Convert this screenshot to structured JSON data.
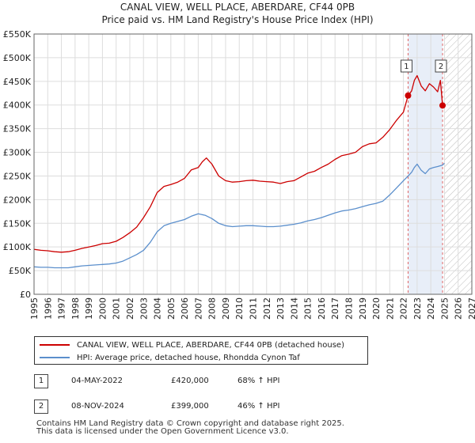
{
  "title_line1": "CANAL VIEW, WELL PLACE, ABERDARE, CF44 0PB",
  "title_line2": "Price paid vs. HM Land Registry's House Price Index (HPI)",
  "legend": {
    "property_label": "CANAL VIEW, WELL PLACE, ABERDARE, CF44 0PB (detached house)",
    "hpi_label": "HPI: Average price, detached house, Rhondda Cynon Taf"
  },
  "sales": [
    {
      "num": "1",
      "date": "04-MAY-2022",
      "price": "£420,000",
      "hpi_change": "68% ↑ HPI"
    },
    {
      "num": "2",
      "date": "08-NOV-2024",
      "price": "£399,000",
      "hpi_change": "46% ↑ HPI"
    }
  ],
  "footer": {
    "line1": "Contains HM Land Registry data © Crown copyright and database right 2025.",
    "line2": "This data is licensed under the Open Government Licence v3.0."
  },
  "colors": {
    "property": "#cc0000",
    "hpi": "#5b8fcc",
    "sale_band": "#e8eef8",
    "sale_line": "#e06666",
    "grid": "#dddddd"
  },
  "chart_data": {
    "type": "line",
    "title": "Price paid vs. HM Land Registry's House Price Index (HPI)",
    "xlabel": "",
    "ylabel": "",
    "xlim": [
      1995,
      2027
    ],
    "ylim": [
      0,
      550000
    ],
    "x_ticks": [
      1995,
      1996,
      1997,
      1998,
      1999,
      2000,
      2001,
      2002,
      2003,
      2004,
      2005,
      2006,
      2007,
      2008,
      2009,
      2010,
      2011,
      2012,
      2013,
      2014,
      2015,
      2016,
      2017,
      2018,
      2019,
      2020,
      2021,
      2022,
      2023,
      2024,
      2025,
      2026,
      2027
    ],
    "y_ticks": [
      {
        "value": 0,
        "label": "£0"
      },
      {
        "value": 50000,
        "label": "£50K"
      },
      {
        "value": 100000,
        "label": "£100K"
      },
      {
        "value": 150000,
        "label": "£150K"
      },
      {
        "value": 200000,
        "label": "£200K"
      },
      {
        "value": 250000,
        "label": "£250K"
      },
      {
        "value": 300000,
        "label": "£300K"
      },
      {
        "value": 350000,
        "label": "£350K"
      },
      {
        "value": 400000,
        "label": "£400K"
      },
      {
        "value": 450000,
        "label": "£450K"
      },
      {
        "value": 500000,
        "label": "£500K"
      },
      {
        "value": 550000,
        "label": "£550K"
      }
    ],
    "sale_band": [
      2022.34,
      2024.86
    ],
    "hatch_from": 2025.0,
    "series": [
      {
        "name": "CANAL VIEW, WELL PLACE, ABERDARE, CF44 0PB (detached house)",
        "key": "property",
        "x": [
          1995.0,
          1995.5,
          1996.0,
          1996.5,
          1997.0,
          1997.5,
          1998.0,
          1998.5,
          1999.0,
          1999.5,
          2000.0,
          2000.5,
          2001.0,
          2001.5,
          2002.0,
          2002.5,
          2003.0,
          2003.5,
          2004.0,
          2004.5,
          2005.0,
          2005.5,
          2006.0,
          2006.5,
          2007.0,
          2007.3,
          2007.6,
          2008.0,
          2008.5,
          2009.0,
          2009.5,
          2010.0,
          2010.5,
          2011.0,
          2011.5,
          2012.0,
          2012.5,
          2013.0,
          2013.5,
          2014.0,
          2014.5,
          2015.0,
          2015.5,
          2016.0,
          2016.5,
          2017.0,
          2017.5,
          2018.0,
          2018.5,
          2019.0,
          2019.5,
          2020.0,
          2020.5,
          2021.0,
          2021.5,
          2022.0,
          2022.34,
          2022.6,
          2022.8,
          2023.0,
          2023.3,
          2023.6,
          2023.9,
          2024.2,
          2024.5,
          2024.7,
          2024.86,
          2025.0
        ],
        "y": [
          95000,
          93000,
          92000,
          90000,
          89000,
          90000,
          93000,
          97000,
          100000,
          103000,
          107000,
          108000,
          112000,
          120000,
          130000,
          142000,
          162000,
          185000,
          215000,
          228000,
          232000,
          237000,
          245000,
          263000,
          268000,
          280000,
          288000,
          275000,
          250000,
          240000,
          237000,
          238000,
          240000,
          241000,
          239000,
          238000,
          237000,
          234000,
          238000,
          240000,
          248000,
          256000,
          260000,
          268000,
          275000,
          285000,
          293000,
          296000,
          300000,
          312000,
          318000,
          320000,
          332000,
          348000,
          368000,
          385000,
          420000,
          430000,
          452000,
          462000,
          440000,
          430000,
          445000,
          438000,
          428000,
          452000,
          399000,
          398000
        ]
      },
      {
        "name": "HPI: Average price, detached house, Rhondda Cynon Taf",
        "key": "hpi",
        "x": [
          1995.0,
          1995.5,
          1996.0,
          1996.5,
          1997.0,
          1997.5,
          1998.0,
          1998.5,
          1999.0,
          1999.5,
          2000.0,
          2000.5,
          2001.0,
          2001.5,
          2002.0,
          2002.5,
          2003.0,
          2003.5,
          2004.0,
          2004.5,
          2005.0,
          2005.5,
          2006.0,
          2006.5,
          2007.0,
          2007.5,
          2008.0,
          2008.5,
          2009.0,
          2009.5,
          2010.0,
          2010.5,
          2011.0,
          2011.5,
          2012.0,
          2012.5,
          2013.0,
          2013.5,
          2014.0,
          2014.5,
          2015.0,
          2015.5,
          2016.0,
          2016.5,
          2017.0,
          2017.5,
          2018.0,
          2018.5,
          2019.0,
          2019.5,
          2020.0,
          2020.5,
          2021.0,
          2021.5,
          2022.0,
          2022.34,
          2022.6,
          2022.8,
          2023.0,
          2023.3,
          2023.6,
          2023.9,
          2024.2,
          2024.5,
          2024.86,
          2025.0
        ],
        "y": [
          58000,
          57000,
          57000,
          56000,
          56000,
          56000,
          58000,
          60000,
          61000,
          62000,
          63000,
          64000,
          66000,
          70000,
          77000,
          84000,
          93000,
          110000,
          132000,
          145000,
          150000,
          154000,
          158000,
          165000,
          170000,
          167000,
          160000,
          150000,
          145000,
          143000,
          144000,
          145000,
          145000,
          144000,
          143000,
          143000,
          144000,
          146000,
          148000,
          151000,
          155000,
          158000,
          162000,
          167000,
          172000,
          176000,
          178000,
          181000,
          185000,
          189000,
          192000,
          197000,
          210000,
          225000,
          240000,
          250000,
          258000,
          268000,
          275000,
          262000,
          255000,
          265000,
          268000,
          270000,
          273000,
          277000
        ]
      }
    ],
    "annotations": [
      {
        "label": "1",
        "x": 2022.34,
        "y": 420000,
        "series": "property"
      },
      {
        "label": "2",
        "x": 2024.86,
        "y": 399000,
        "series": "property"
      }
    ],
    "legend_position": "bottom"
  }
}
